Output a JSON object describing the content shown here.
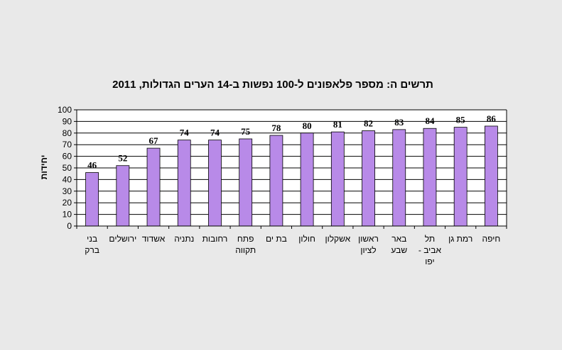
{
  "chart_data": {
    "type": "bar",
    "title": "תרשים ה: מספר פלאפונים ל-100 נפשות ב-14 הערים הגדולות, 2011",
    "xlabel": "",
    "ylabel": "יחידות",
    "ylim": [
      0,
      100
    ],
    "yticks": [
      0,
      10,
      20,
      30,
      40,
      50,
      60,
      70,
      80,
      90,
      100
    ],
    "grid": true,
    "bar_color": "#b88ae8",
    "plot_background": "#ffffff",
    "page_background": "#e9e9e9",
    "categories": [
      [
        "בני",
        "ברק"
      ],
      [
        "ירושלים"
      ],
      [
        "אשדוד"
      ],
      [
        "נתניה"
      ],
      [
        "רחובות"
      ],
      [
        "פתח",
        "תקווה"
      ],
      [
        "בת ים"
      ],
      [
        "חולון"
      ],
      [
        "אשקלון"
      ],
      [
        "ראשון",
        "לציון"
      ],
      [
        "באר",
        "שבע"
      ],
      [
        "תל",
        "אביב -",
        "יפו"
      ],
      [
        "רמת גן"
      ],
      [
        "חיפה"
      ]
    ],
    "values": [
      46,
      52,
      67,
      74,
      74,
      75,
      78,
      80,
      81,
      82,
      83,
      84,
      85,
      86
    ]
  }
}
